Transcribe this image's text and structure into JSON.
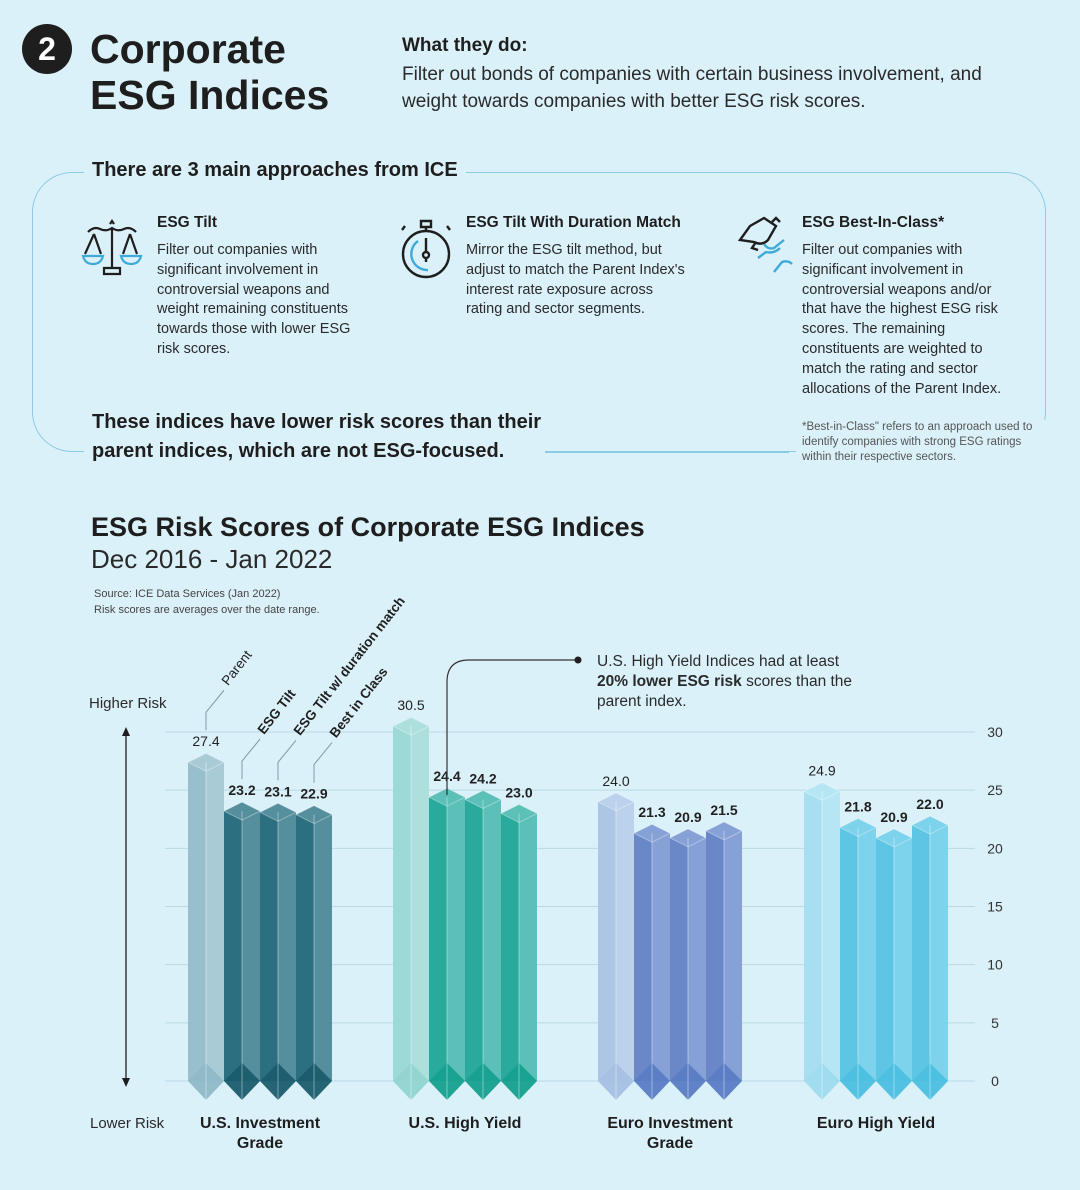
{
  "header": {
    "number": "2",
    "title_line1": "Corporate",
    "title_line2": "ESG Indices",
    "what_label": "What they do:",
    "what_text": "Filter out bonds of companies with certain business involvement, and weight towards companies with better ESG risk scores."
  },
  "approaches": {
    "title": "There are 3 main approaches from ICE",
    "items": [
      {
        "icon": "scales-icon",
        "title": "ESG Tilt",
        "text": "Filter out companies with significant involvement in controversial weapons and weight remaining constituents towards those with lower ESG risk scores."
      },
      {
        "icon": "stopwatch-icon",
        "title": "ESG Tilt With Duration Match",
        "text": "Mirror the ESG tilt method, but adjust to match the Parent Index's interest rate exposure across rating and sector segments."
      },
      {
        "icon": "trophy-hand-icon",
        "title": "ESG Best-In-Class*",
        "text": "Filter out companies with significant involvement in controversial weapons and/or that have the highest ESG risk scores. The remaining constituents are weighted to match the rating and sector allocations of the Parent Index."
      }
    ],
    "conclusion": "These indices have lower risk scores than their parent indices, which are not ESG-focused.",
    "footnote": "*Best-in-Class\" refers to an approach used to identify companies with strong ESG ratings within their respective sectors."
  },
  "chart_data": {
    "type": "bar",
    "title": "ESG Risk Scores of Corporate ESG Indices",
    "subtitle": "Dec 2016 - Jan 2022",
    "source": "Source: ICE Data Services (Jan 2022)",
    "note": "Risk scores are averages over the date range.",
    "categories": [
      "U.S. Investment Grade",
      "U.S. High Yield",
      "Euro Investment Grade",
      "Euro High Yield"
    ],
    "series": [
      {
        "name": "Parent",
        "values": [
          27.4,
          30.5,
          24.0,
          24.9
        ]
      },
      {
        "name": "ESG Tilt",
        "values": [
          23.2,
          24.4,
          21.3,
          21.8
        ]
      },
      {
        "name": "ESG Tilt w/ duration match",
        "values": [
          23.1,
          24.2,
          20.9,
          20.9
        ]
      },
      {
        "name": "Best in Class",
        "values": [
          22.9,
          23.0,
          21.5,
          22.0
        ]
      }
    ],
    "ylim": [
      0,
      30
    ],
    "yticks": [
      0,
      5,
      10,
      15,
      20,
      25,
      30
    ],
    "y_axis_right": true,
    "grid": true,
    "higher_label": "Higher Risk",
    "lower_label": "Lower Risk",
    "annotation": {
      "pre": "U.S. High Yield Indices had at least",
      "bold": "20% lower ESG risk",
      "post": "scores than the parent index."
    },
    "colors": {
      "group_palettes": [
        {
          "parent": [
            "#97bfcc",
            "#a9cbd6"
          ],
          "other": [
            "#2c6f80",
            "#558e9c"
          ],
          "bottom": "#1a5c6d",
          "pbottom": "#8fb9c7"
        },
        {
          "parent": [
            "#9dd9d6",
            "#ade0dd"
          ],
          "other": [
            "#2aaa9c",
            "#5cbfb8"
          ],
          "bottom": "#16a08f",
          "pbottom": "#92d4d0"
        },
        {
          "parent": [
            "#aec6e6",
            "#bcd2ec"
          ],
          "other": [
            "#6a88c8",
            "#86a1d6"
          ],
          "bottom": "#5a7cc4",
          "pbottom": "#a6c0e3"
        },
        {
          "parent": [
            "#a8dff0",
            "#b6e6f4"
          ],
          "other": [
            "#5ec6e4",
            "#7dd2ec"
          ],
          "bottom": "#4cbfe0",
          "pbottom": "#9fdbee"
        }
      ]
    }
  }
}
